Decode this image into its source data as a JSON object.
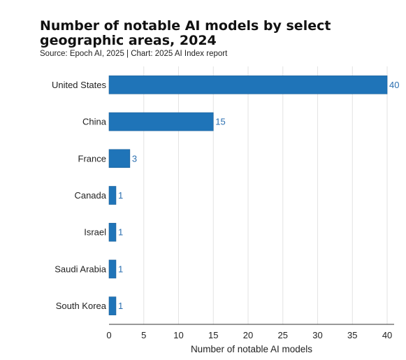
{
  "chart_data": {
    "type": "bar",
    "orientation": "horizontal",
    "title": "Number of notable AI models by select geographic areas, 2024",
    "subtitle": "Source: Epoch AI, 2025 | Chart: 2025 AI Index report",
    "categories": [
      "United States",
      "China",
      "France",
      "Canada",
      "Israel",
      "Saudi Arabia",
      "South Korea"
    ],
    "values": [
      40,
      15,
      3,
      1,
      1,
      1,
      1
    ],
    "xlabel": "Number of notable AI models",
    "ylabel": "",
    "xlim": [
      0,
      41
    ],
    "xticks": [
      0,
      5,
      10,
      15,
      20,
      25,
      30,
      35,
      40
    ],
    "grid": "vertical",
    "bar_color": "#1f74b8",
    "label_color": "#2b6fb0"
  }
}
